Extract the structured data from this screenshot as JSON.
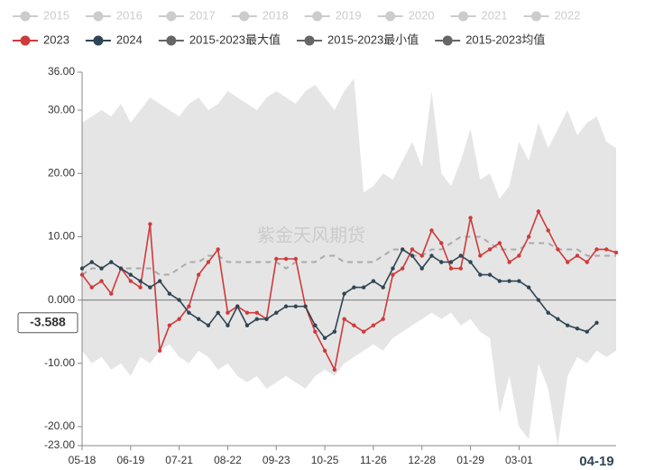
{
  "chart_data": {
    "type": "line",
    "watermark": "紫金天风期货",
    "hidden_legend": [
      "2015",
      "2016",
      "2017",
      "2018",
      "2019",
      "2020",
      "2021",
      "2022"
    ],
    "hidden_color": "#cccccc",
    "categories": [
      "05-18",
      null,
      null,
      null,
      null,
      "06-19",
      null,
      null,
      null,
      null,
      "07-21",
      null,
      null,
      null,
      null,
      "08-22",
      null,
      null,
      null,
      null,
      "09-23",
      null,
      null,
      null,
      null,
      "10-25",
      null,
      null,
      null,
      null,
      "11-26",
      null,
      null,
      null,
      null,
      "12-28",
      null,
      null,
      null,
      null,
      "01-29",
      null,
      null,
      null,
      null,
      "03-01",
      null,
      null,
      null,
      null,
      null,
      null,
      null,
      "04-19",
      null,
      null
    ],
    "pointer_category": 53,
    "pointer_value": -3.588,
    "series": [
      {
        "name": "2023",
        "color": "#d03a3a",
        "values": [
          4,
          2,
          3,
          1,
          5,
          3,
          2,
          12,
          -8,
          -4,
          -3,
          -1,
          4,
          6,
          8,
          -2,
          -1,
          -2,
          -2,
          -3,
          6.5,
          6.5,
          6.5,
          -1,
          -5,
          -8,
          -11,
          -3,
          -4,
          -5,
          -4,
          -3,
          4,
          5,
          8,
          7,
          11,
          9,
          5,
          5,
          13,
          7,
          8,
          9,
          6,
          7,
          10,
          14,
          11,
          8,
          6,
          7,
          6,
          8,
          8,
          7.5
        ]
      },
      {
        "name": "2024",
        "color": "#2f4554",
        "values": [
          5,
          6,
          5,
          6,
          5,
          4,
          3,
          2,
          3,
          1,
          0,
          -2,
          -3,
          -4,
          -2,
          -4,
          -1,
          -4,
          -3,
          -3,
          -2,
          -1,
          -1,
          -1,
          -4,
          -6,
          -5,
          1,
          2,
          2,
          3,
          2,
          5,
          8,
          7,
          5,
          7,
          6,
          6,
          7,
          6,
          4,
          4,
          3,
          3,
          3,
          2,
          0,
          -2,
          -3,
          -4,
          -4.5,
          -5,
          -3.588,
          null,
          null
        ]
      },
      {
        "name": "2015-2023最大值",
        "color": "#666666",
        "band": "upper",
        "values": [
          28,
          29,
          30,
          29,
          31,
          28,
          30,
          32,
          31,
          30,
          29,
          31,
          32,
          30,
          31,
          33,
          32,
          31,
          30,
          32,
          33,
          32,
          31,
          33,
          34,
          32,
          30,
          33,
          35,
          17,
          18,
          20,
          19,
          22,
          25,
          21,
          33,
          20,
          18,
          22,
          27,
          19,
          20,
          16,
          18,
          25,
          22,
          28,
          24,
          27,
          30,
          26,
          28,
          29,
          25,
          24
        ]
      },
      {
        "name": "2015-2023最小值",
        "color": "#666666",
        "band": "lower",
        "values": [
          -8,
          -10,
          -9,
          -11,
          -10,
          -12,
          -9,
          -10,
          -8,
          -7,
          -9,
          -10,
          -8,
          -9,
          -11,
          -10,
          -12,
          -13,
          -12,
          -14,
          -13,
          -12,
          -13,
          -14,
          -12,
          -11,
          -12,
          -10,
          -9,
          -8,
          -7,
          -8,
          -6,
          -5,
          -4,
          -3,
          -2,
          -3,
          -2,
          -4,
          -3,
          -5,
          -6,
          -18,
          -12,
          -20,
          -22,
          -10,
          -14,
          -23,
          -12,
          -9,
          -10,
          -8,
          -9,
          -8
        ]
      },
      {
        "name": "2015-2023均值",
        "color": "#666666",
        "dash": true,
        "values": [
          4,
          5,
          5,
          6,
          5,
          5,
          5,
          5,
          4,
          4,
          5,
          6,
          6,
          7,
          7,
          6,
          6,
          6,
          6,
          6,
          6,
          5,
          6,
          6,
          6,
          7,
          7,
          6,
          6,
          6,
          6,
          7,
          8,
          8,
          7,
          7,
          8,
          8,
          9,
          10,
          10,
          10,
          9,
          8,
          8,
          8,
          9,
          9,
          9,
          8,
          8,
          8,
          7,
          7,
          7,
          7
        ]
      }
    ],
    "band_color": "#e5e5e5",
    "ylim": [
      -23,
      36
    ],
    "yticks": [
      {
        "value": 36,
        "label": "36.00"
      },
      {
        "value": 30,
        "label": "30.00"
      },
      {
        "value": 20,
        "label": "20.00"
      },
      {
        "value": 10,
        "label": "10.00"
      },
      {
        "value": 0,
        "label": "0.000"
      },
      {
        "value": -10,
        "label": "-10.00"
      },
      {
        "value": -20,
        "label": "-20.00"
      },
      {
        "value": -23,
        "label": "-23.00"
      }
    ]
  }
}
